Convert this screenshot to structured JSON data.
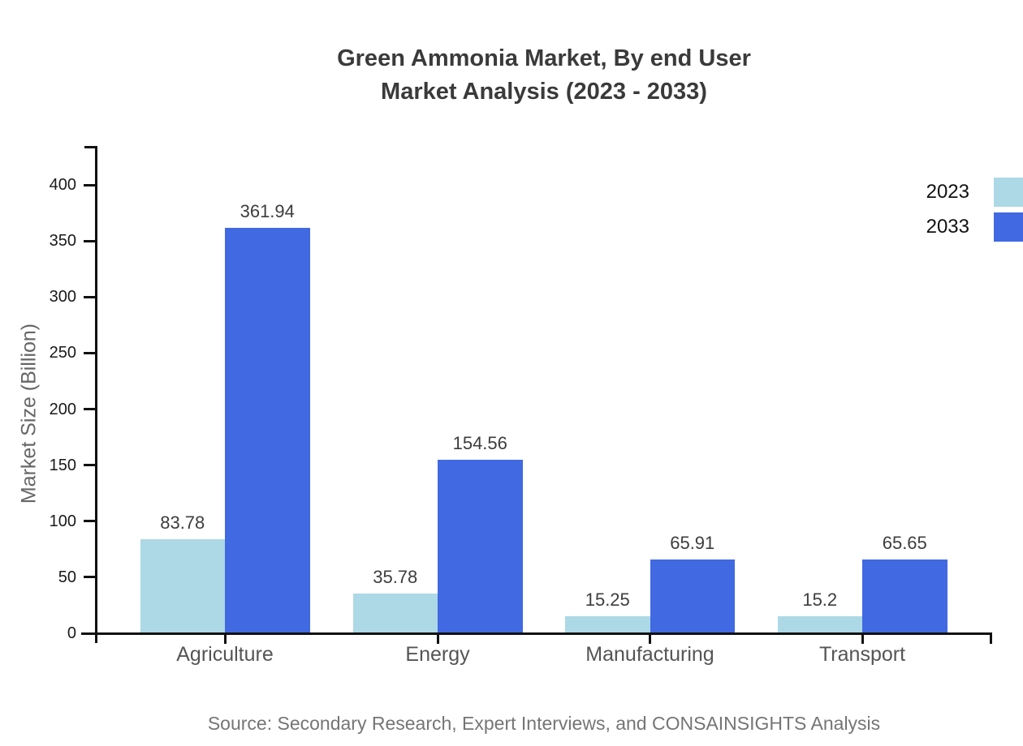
{
  "title": {
    "line1": "Green Ammonia Market, By end User",
    "line2": "Market Analysis (2023 - 2033)"
  },
  "source": "Source: Secondary Research, Expert Interviews, and CONSAINSIGHTS Analysis",
  "colors": {
    "series_2023": "#ADD8E6",
    "series_2033": "#4169E1",
    "axis": "#111111",
    "title_text": "#3a3a3a",
    "category_text": "#555555",
    "source_text": "#757575"
  },
  "chart_data": {
    "type": "bar",
    "title": "Green Ammonia Market, By end User Market Analysis (2023 - 2033)",
    "categories": [
      "Agriculture",
      "Energy",
      "Manufacturing",
      "Transport"
    ],
    "series": [
      {
        "name": "2023",
        "color": "#ADD8E6",
        "values": [
          83.78,
          35.78,
          15.25,
          15.2
        ]
      },
      {
        "name": "2033",
        "color": "#4169E1",
        "values": [
          361.94,
          154.56,
          65.91,
          65.65
        ]
      }
    ],
    "xlabel": "",
    "ylabel": "Market Size (Billion)",
    "ylim": [
      0,
      435
    ],
    "yticks": [
      0,
      50,
      100,
      150,
      200,
      250,
      300,
      350,
      400
    ],
    "grid": false,
    "legend_position": "top-right",
    "value_labels": true
  }
}
